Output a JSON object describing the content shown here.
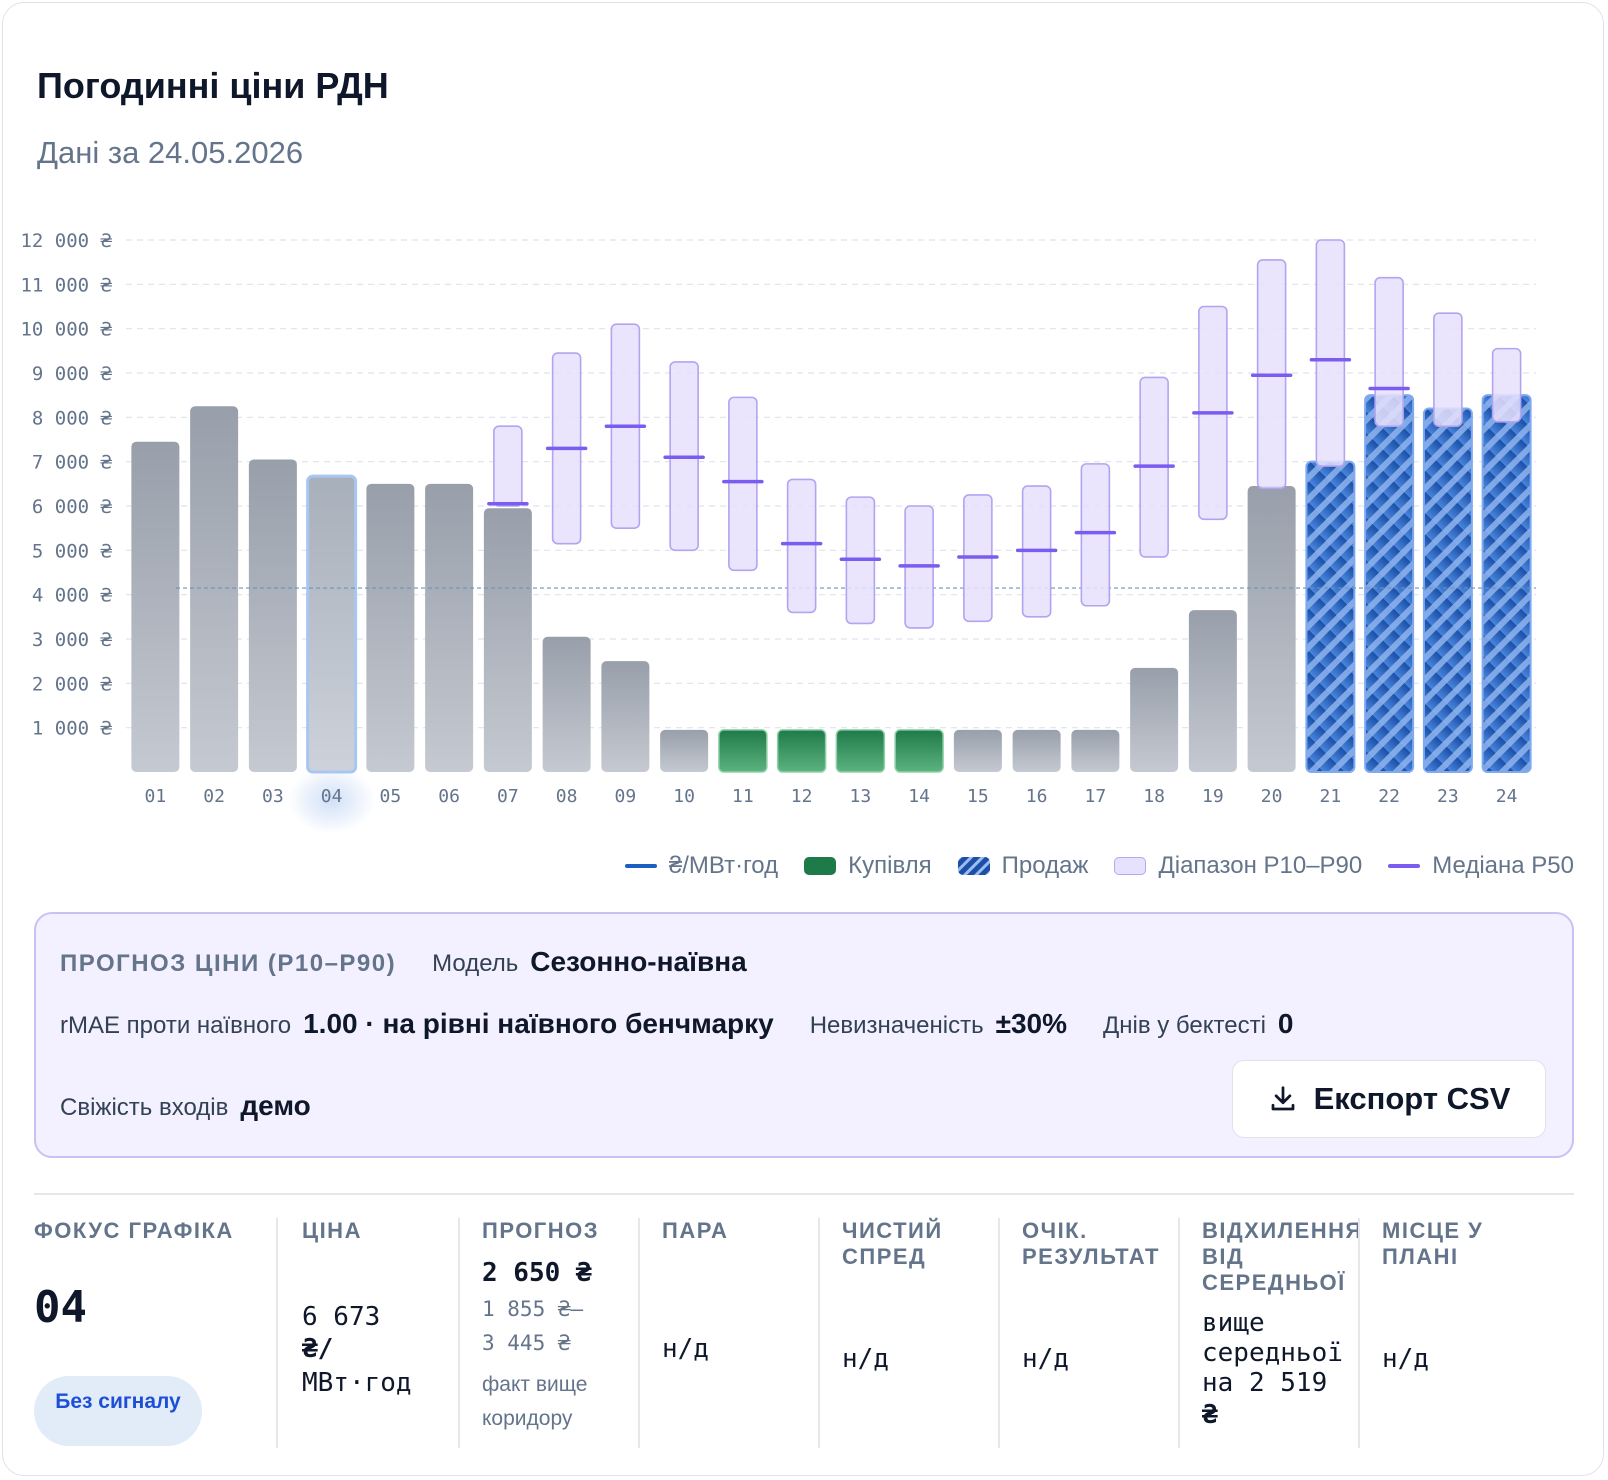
{
  "header": {
    "title": "Погодинні ціни РДН",
    "subtitle": "Дані за 24.05.2026"
  },
  "chart_data": {
    "type": "bar",
    "y_ticks": [
      "1 000 ₴",
      "2 000 ₴",
      "3 000 ₴",
      "4 000 ₴",
      "5 000 ₴",
      "6 000 ₴",
      "7 000 ₴",
      "8 000 ₴",
      "9 000 ₴",
      "10 000 ₴",
      "11 000 ₴",
      "12 000 ₴"
    ],
    "categories": [
      "01",
      "02",
      "03",
      "04",
      "05",
      "06",
      "07",
      "08",
      "09",
      "10",
      "11",
      "12",
      "13",
      "14",
      "15",
      "16",
      "17",
      "18",
      "19",
      "20",
      "21",
      "22",
      "23",
      "24"
    ],
    "ylim": [
      0,
      12000
    ],
    "grid": true,
    "average_line": 4150,
    "highlighted_hour": "04",
    "series": [
      {
        "name": "₴/МВт·год",
        "values": [
          7450,
          8250,
          7050,
          6673,
          6500,
          6500,
          5950,
          3050,
          2500,
          950,
          950,
          950,
          950,
          950,
          950,
          950,
          950,
          2350,
          3650,
          6450,
          7000,
          8500,
          8200,
          8500
        ],
        "signal": [
          "none",
          "none",
          "none",
          "none",
          "none",
          "none",
          "none",
          "none",
          "none",
          "none",
          "buy",
          "buy",
          "buy",
          "buy",
          "none",
          "none",
          "none",
          "none",
          "none",
          "none",
          "sell",
          "sell",
          "sell",
          "sell"
        ]
      },
      {
        "name": "Діапазон P10–P90",
        "hours": [
          "07",
          "08",
          "09",
          "10",
          "11",
          "12",
          "13",
          "14",
          "15",
          "16",
          "17",
          "18",
          "19",
          "20",
          "21",
          "22",
          "23",
          "24"
        ],
        "p10": [
          6000,
          5150,
          5500,
          5000,
          4550,
          3600,
          3350,
          3250,
          3400,
          3500,
          3750,
          4850,
          5700,
          6400,
          6900,
          7800,
          7800,
          7900
        ],
        "p90": [
          7800,
          9450,
          10100,
          9250,
          8450,
          6600,
          6200,
          6000,
          6250,
          6450,
          6950,
          8900,
          10500,
          11550,
          12000,
          11150,
          10350,
          9550
        ],
        "p50": [
          6050,
          7300,
          7800,
          7100,
          6550,
          5150,
          4800,
          4650,
          4850,
          5000,
          5400,
          6900,
          8100,
          8950,
          9300,
          8650,
          null,
          null
        ]
      }
    ],
    "legend": [
      {
        "label": "₴/МВт·год",
        "color": "#1d5fc0"
      },
      {
        "label": "Купівля",
        "color": "#1f7a4a"
      },
      {
        "label": "Продаж",
        "color": "#1d4fa8"
      },
      {
        "label": "Діапазон P10–P90",
        "color": "#e6e1fc"
      },
      {
        "label": "Медіана P50",
        "color": "#7b5cf0"
      }
    ]
  },
  "forecast": {
    "heading": "ПРОГНОЗ ЦІНИ (P10–P90)",
    "model_label": "Модель",
    "model_value": "Сезонно-наївна",
    "rmae_label": "rMAE проти наївного",
    "rmae_value": "1.00 · на рівні наївного бенчмарку",
    "uncertainty_label": "Невизначеність",
    "uncertainty_value": "±30%",
    "days_label": "Днів у бектесті",
    "days_value": "0",
    "freshness_label": "Свіжість входів",
    "freshness_value": "демо",
    "export_label": "Експорт CSV"
  },
  "stats": {
    "focus": {
      "label": "ФОКУС ГРАФІКА",
      "value": "04",
      "badge": "Без сигналу"
    },
    "price": {
      "label": "ЦІНА",
      "line1": "6 673",
      "line2": "₴/",
      "line3": "МВт·год"
    },
    "forecast": {
      "label": "ПРОГНОЗ",
      "value": "2 650 ₴",
      "range1": "1 855 ₴–",
      "range2": "3 445 ₴",
      "note1": "факт вище",
      "note2": "коридору"
    },
    "pair": {
      "label": "ПАРА",
      "value": "н/д"
    },
    "spread": {
      "label1": "ЧИСТИЙ",
      "label2": "СПРЕД",
      "value": "н/д"
    },
    "result": {
      "label1": "ОЧІК.",
      "label2": "РЕЗУЛЬТАТ",
      "value": "н/д"
    },
    "deviation": {
      "label1": "ВІДХИЛЕННЯ",
      "label2": "ВІД",
      "label3": "СЕРЕДНЬОЇ",
      "line1": "вище",
      "line2": "середньої",
      "line3": "на 2 519",
      "line4": "₴"
    },
    "place": {
      "label1": "МІСЦЕ У",
      "label2": "ПЛАНІ",
      "value": "н/д"
    }
  }
}
